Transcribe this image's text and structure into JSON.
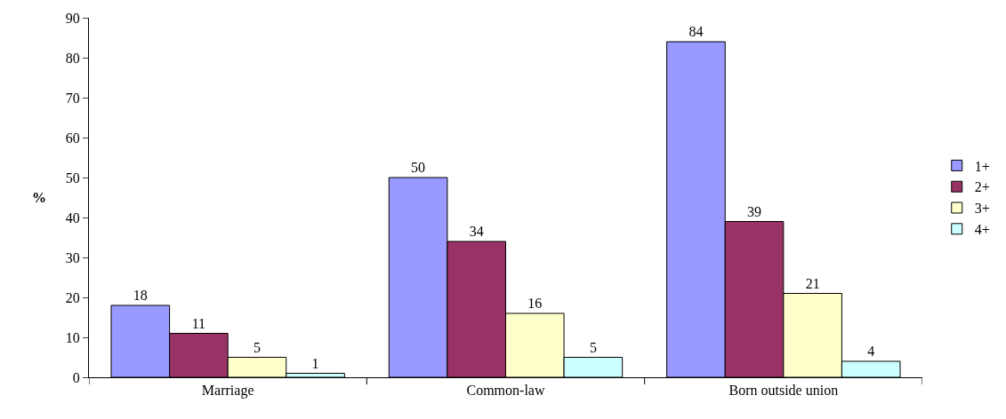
{
  "chart_data": {
    "type": "bar",
    "ylabel": "%",
    "categories": [
      "Marriage",
      "Common-law",
      "Born outside union"
    ],
    "series": [
      {
        "name": "1+",
        "color": "#9999ff",
        "values": [
          18,
          50,
          84
        ]
      },
      {
        "name": "2+",
        "color": "#993366",
        "values": [
          11,
          34,
          39
        ]
      },
      {
        "name": "3+",
        "color": "#ffffcc",
        "values": [
          5,
          16,
          21
        ]
      },
      {
        "name": "4+",
        "color": "#ccffff",
        "values": [
          1,
          5,
          4
        ]
      }
    ],
    "ylim": [
      0,
      90
    ],
    "yticks": [
      0,
      10,
      20,
      30,
      40,
      50,
      60,
      70,
      80,
      90
    ],
    "data_labels": true,
    "legend": "right",
    "grid": false
  }
}
